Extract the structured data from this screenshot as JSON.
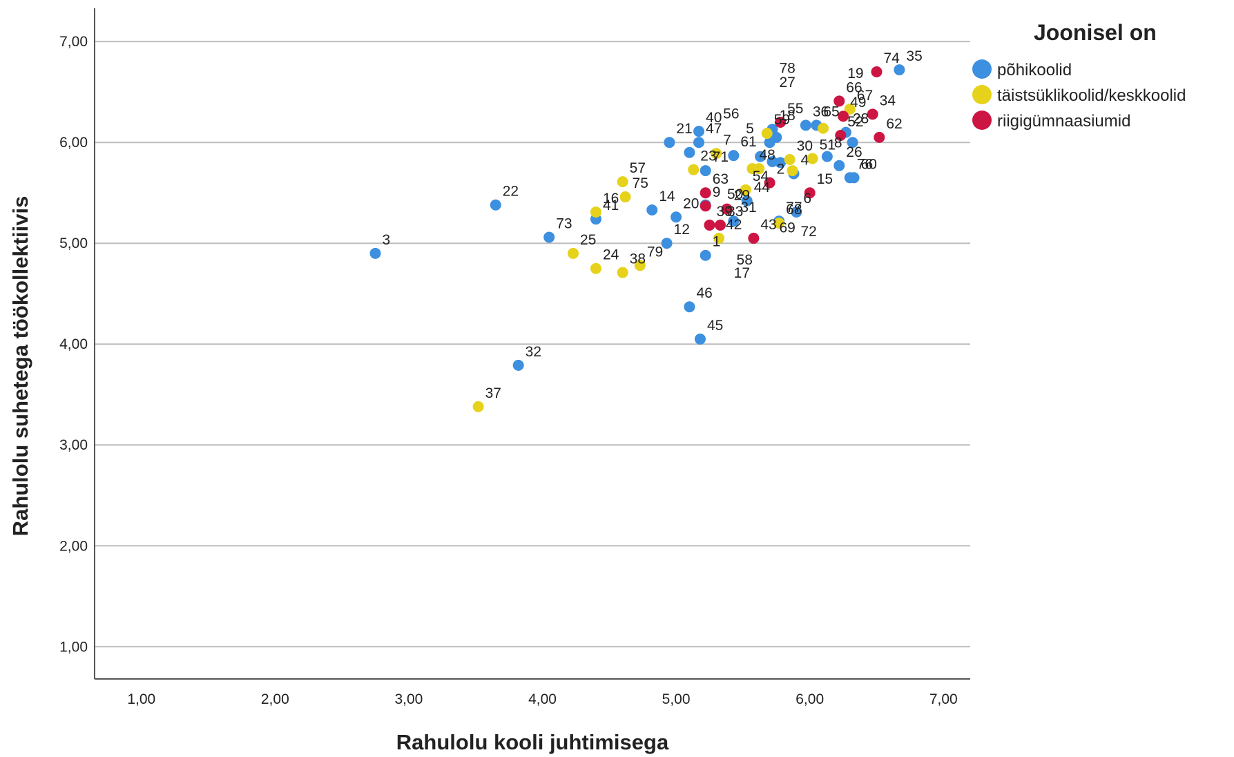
{
  "chart_data": {
    "type": "scatter",
    "xlabel": "Rahulolu kooli juhtimisega",
    "ylabel": "Rahulolu suhetega töökollektiivis",
    "xlim": [
      0.65,
      7.2
    ],
    "ylim": [
      0.68,
      7.33
    ],
    "x_ticks": [
      "1,00",
      "2,00",
      "3,00",
      "4,00",
      "5,00",
      "6,00",
      "7,00"
    ],
    "y_ticks": [
      "1,00",
      "2,00",
      "3,00",
      "4,00",
      "5,00",
      "6,00",
      "7,00"
    ],
    "grid": "horizontal",
    "legend": {
      "title": "Joonisel on",
      "position": "right"
    },
    "series": [
      {
        "name": "põhikoolid",
        "color": "#3d8fe0",
        "points": [
          {
            "x": 2.75,
            "y": 4.9,
            "label": "3"
          },
          {
            "x": 3.65,
            "y": 5.38,
            "label": "22"
          },
          {
            "x": 3.82,
            "y": 3.79,
            "label": "32"
          },
          {
            "x": 4.05,
            "y": 5.06,
            "label": "73"
          },
          {
            "x": 4.4,
            "y": 5.24,
            "label": "41"
          },
          {
            "x": 4.82,
            "y": 5.33,
            "label": "14"
          },
          {
            "x": 5.0,
            "y": 5.26,
            "label": "20"
          },
          {
            "x": 4.93,
            "y": 5.0,
            "label": "12"
          },
          {
            "x": 5.22,
            "y": 4.88,
            "label": "1"
          },
          {
            "x": 5.1,
            "y": 4.37,
            "label": "46"
          },
          {
            "x": 5.18,
            "y": 4.05,
            "label": "45"
          },
          {
            "x": 4.95,
            "y": 6.0,
            "label": "21"
          },
          {
            "x": 5.17,
            "y": 6.11,
            "label": "40"
          },
          {
            "x": 5.17,
            "y": 6.0,
            "label": "47"
          },
          {
            "x": 5.1,
            "y": 5.9,
            "label": ""
          },
          {
            "x": 5.22,
            "y": 5.72,
            "label": "71"
          },
          {
            "x": 5.43,
            "y": 5.87,
            "label": "61"
          },
          {
            "x": 5.22,
            "y": 5.38,
            "label": ""
          },
          {
            "x": 5.43,
            "y": 5.22,
            "label": "31"
          },
          {
            "x": 5.53,
            "y": 5.42,
            "label": "44"
          },
          {
            "x": 5.63,
            "y": 5.86,
            "label": ""
          },
          {
            "x": 5.7,
            "y": 6.0,
            "label": ""
          },
          {
            "x": 5.72,
            "y": 6.13,
            "label": "18"
          },
          {
            "x": 5.75,
            "y": 6.05,
            "label": ""
          },
          {
            "x": 5.72,
            "y": 5.81,
            "label": ""
          },
          {
            "x": 5.78,
            "y": 5.8,
            "label": ""
          },
          {
            "x": 5.97,
            "y": 6.17,
            "label": "36"
          },
          {
            "x": 6.05,
            "y": 6.17,
            "label": "65"
          },
          {
            "x": 5.88,
            "y": 5.69,
            "label": "4"
          },
          {
            "x": 5.9,
            "y": 5.31,
            "label": "6"
          },
          {
            "x": 5.77,
            "y": 5.22,
            "label": "77"
          },
          {
            "x": 6.13,
            "y": 5.86,
            "label": "8"
          },
          {
            "x": 6.22,
            "y": 5.77,
            "label": "26"
          },
          {
            "x": 6.27,
            "y": 6.1,
            "label": "28"
          },
          {
            "x": 6.32,
            "y": 6.0,
            "label": ""
          },
          {
            "x": 6.3,
            "y": 5.65,
            "label": "76"
          },
          {
            "x": 6.33,
            "y": 5.65,
            "label": "60"
          },
          {
            "x": 6.67,
            "y": 6.72,
            "label": "35"
          }
        ]
      },
      {
        "name": "täistsüklikoolid/keskkoolid",
        "color": "#e6d21a",
        "points": [
          {
            "x": 3.52,
            "y": 3.38,
            "label": "37"
          },
          {
            "x": 4.23,
            "y": 4.9,
            "label": "25"
          },
          {
            "x": 4.4,
            "y": 5.31,
            "label": "16"
          },
          {
            "x": 4.4,
            "y": 4.75,
            "label": "24"
          },
          {
            "x": 4.6,
            "y": 5.61,
            "label": "57"
          },
          {
            "x": 4.62,
            "y": 5.46,
            "label": "75"
          },
          {
            "x": 4.6,
            "y": 4.71,
            "label": "38"
          },
          {
            "x": 4.73,
            "y": 4.78,
            "label": "79"
          },
          {
            "x": 5.13,
            "y": 5.73,
            "label": "23"
          },
          {
            "x": 5.3,
            "y": 5.89,
            "label": "7"
          },
          {
            "x": 5.32,
            "y": 5.05,
            "label": "42"
          },
          {
            "x": 5.52,
            "y": 5.53,
            "label": "54"
          },
          {
            "x": 5.57,
            "y": 5.74,
            "label": "48"
          },
          {
            "x": 5.62,
            "y": 5.74,
            "label": ""
          },
          {
            "x": 5.68,
            "y": 6.09,
            "label": "59"
          },
          {
            "x": 5.85,
            "y": 5.83,
            "label": "30"
          },
          {
            "x": 5.87,
            "y": 5.72,
            "label": ""
          },
          {
            "x": 5.77,
            "y": 5.2,
            "label": "68"
          },
          {
            "x": 6.02,
            "y": 5.84,
            "label": "51"
          },
          {
            "x": 6.1,
            "y": 6.14,
            "label": ""
          },
          {
            "x": 6.3,
            "y": 6.33,
            "label": "67"
          }
        ]
      },
      {
        "name": "riigigümnaasiumid",
        "color": "#cc1542",
        "points": [
          {
            "x": 5.22,
            "y": 5.5,
            "label": "63"
          },
          {
            "x": 5.22,
            "y": 5.37,
            "label": "9"
          },
          {
            "x": 5.25,
            "y": 5.18,
            "label": "39"
          },
          {
            "x": 5.33,
            "y": 5.18,
            "label": "33"
          },
          {
            "x": 5.38,
            "y": 5.34,
            "label": "29"
          },
          {
            "x": 5.58,
            "y": 5.05,
            "label": "43"
          },
          {
            "x": 5.7,
            "y": 5.6,
            "label": "2"
          },
          {
            "x": 5.78,
            "y": 6.2,
            "label": "55"
          },
          {
            "x": 6.0,
            "y": 5.5,
            "label": "15"
          },
          {
            "x": 6.22,
            "y": 6.41,
            "label": "66"
          },
          {
            "x": 6.25,
            "y": 6.26,
            "label": "49"
          },
          {
            "x": 6.23,
            "y": 6.07,
            "label": "52"
          },
          {
            "x": 6.47,
            "y": 6.28,
            "label": "34"
          },
          {
            "x": 6.5,
            "y": 6.7,
            "label": "74"
          },
          {
            "x": 6.52,
            "y": 6.05,
            "label": "62"
          }
        ]
      }
    ],
    "free_labels": [
      {
        "x": 5.3,
        "y": 6.15,
        "text": "56"
      },
      {
        "x": 5.72,
        "y": 6.46,
        "text": "27"
      },
      {
        "x": 5.72,
        "y": 6.6,
        "text": "78"
      },
      {
        "x": 6.23,
        "y": 6.55,
        "text": "19"
      },
      {
        "x": 5.47,
        "y": 6.0,
        "text": "5"
      },
      {
        "x": 5.33,
        "y": 5.35,
        "text": "50"
      },
      {
        "x": 5.72,
        "y": 5.02,
        "text": "69"
      },
      {
        "x": 5.88,
        "y": 4.98,
        "text": "72"
      },
      {
        "x": 5.38,
        "y": 4.57,
        "text": "17"
      },
      {
        "x": 5.4,
        "y": 4.7,
        "text": "58"
      }
    ]
  }
}
